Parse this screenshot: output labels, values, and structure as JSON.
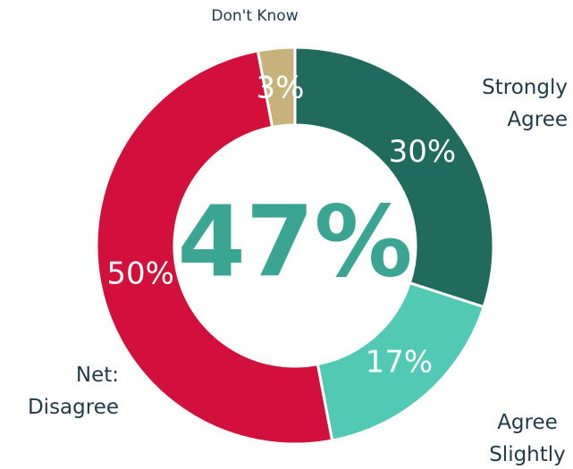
{
  "chart_data": {
    "type": "donut",
    "categories": [
      "Strongly Agree",
      "Agree Slightly",
      "Net: Disagree",
      "Don't Know"
    ],
    "values": [
      30,
      17,
      50,
      3
    ],
    "value_labels": [
      "30%",
      "17%",
      "50%",
      "3%"
    ],
    "colors": [
      "#206b5e",
      "#52c9b5",
      "#d3103c",
      "#c8b27c"
    ],
    "center_label": "47%",
    "center_color": "#3aa593"
  }
}
